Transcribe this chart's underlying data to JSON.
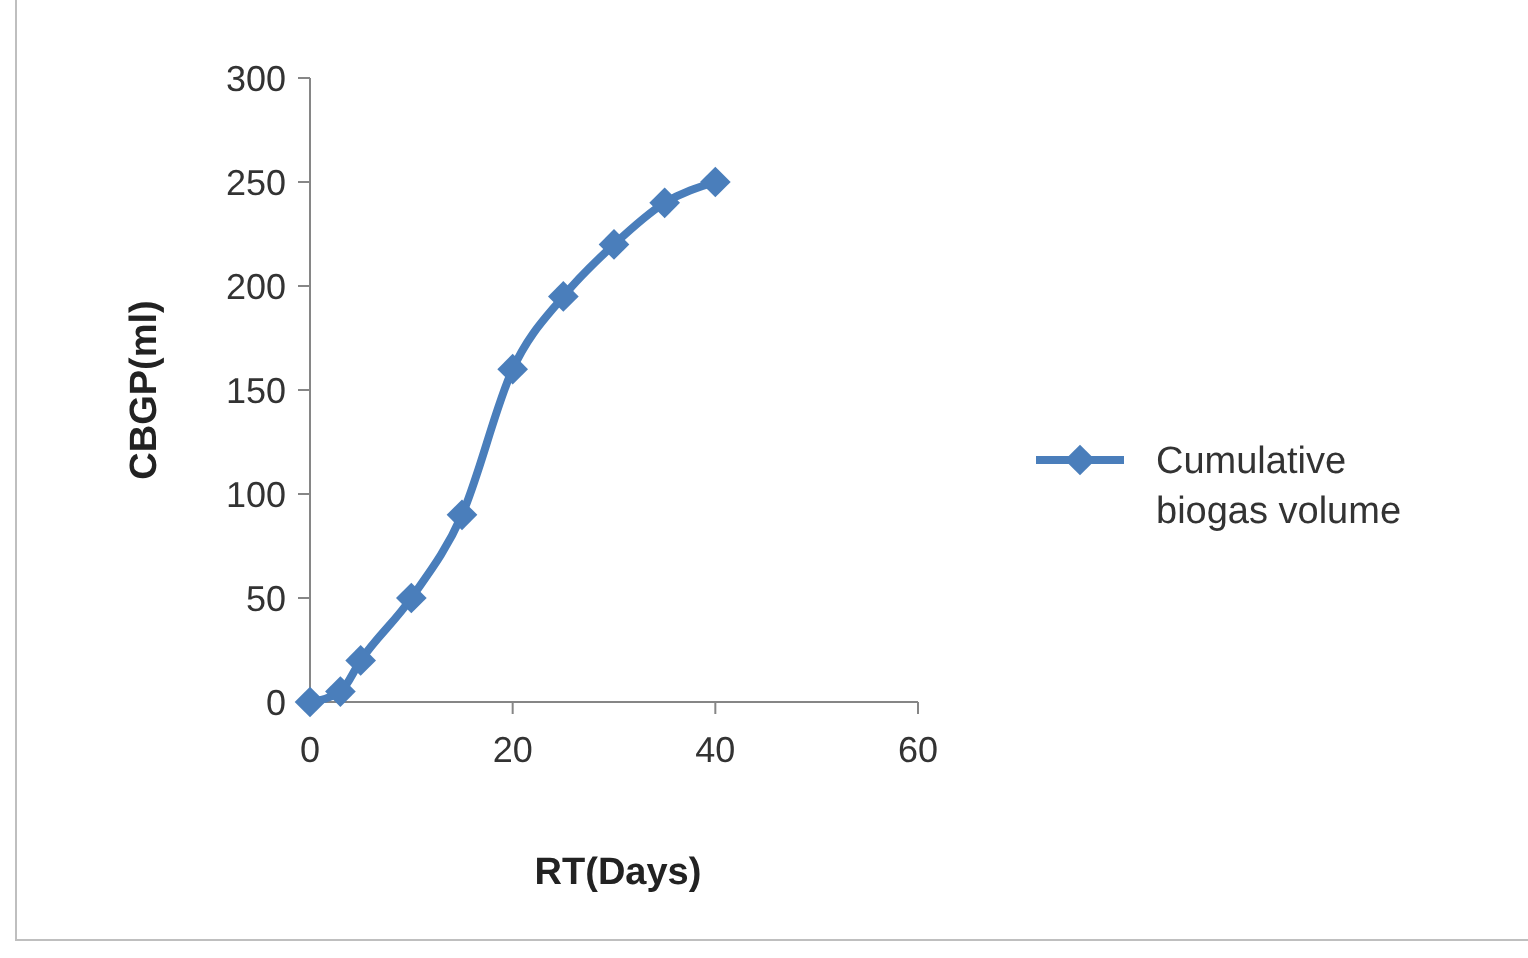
{
  "chart_data": {
    "type": "line",
    "xlabel": "RT(Days)",
    "ylabel": "CBGP(ml)",
    "xlim": [
      0,
      60
    ],
    "xticks": [
      0,
      20,
      40,
      60
    ],
    "ylim": [
      0,
      300
    ],
    "yticks": [
      0,
      50,
      100,
      150,
      200,
      250,
      300
    ],
    "grid": false,
    "legend": "right",
    "marker": "diamond",
    "line_style": "solid",
    "series": [
      {
        "name": "Cumulative biogas volume",
        "color": "#4a7ebb",
        "x": [
          0,
          3,
          5,
          10,
          15,
          20,
          25,
          30,
          35,
          40
        ],
        "values": [
          0,
          5,
          20,
          50,
          90,
          160,
          195,
          220,
          240,
          250
        ]
      }
    ]
  }
}
